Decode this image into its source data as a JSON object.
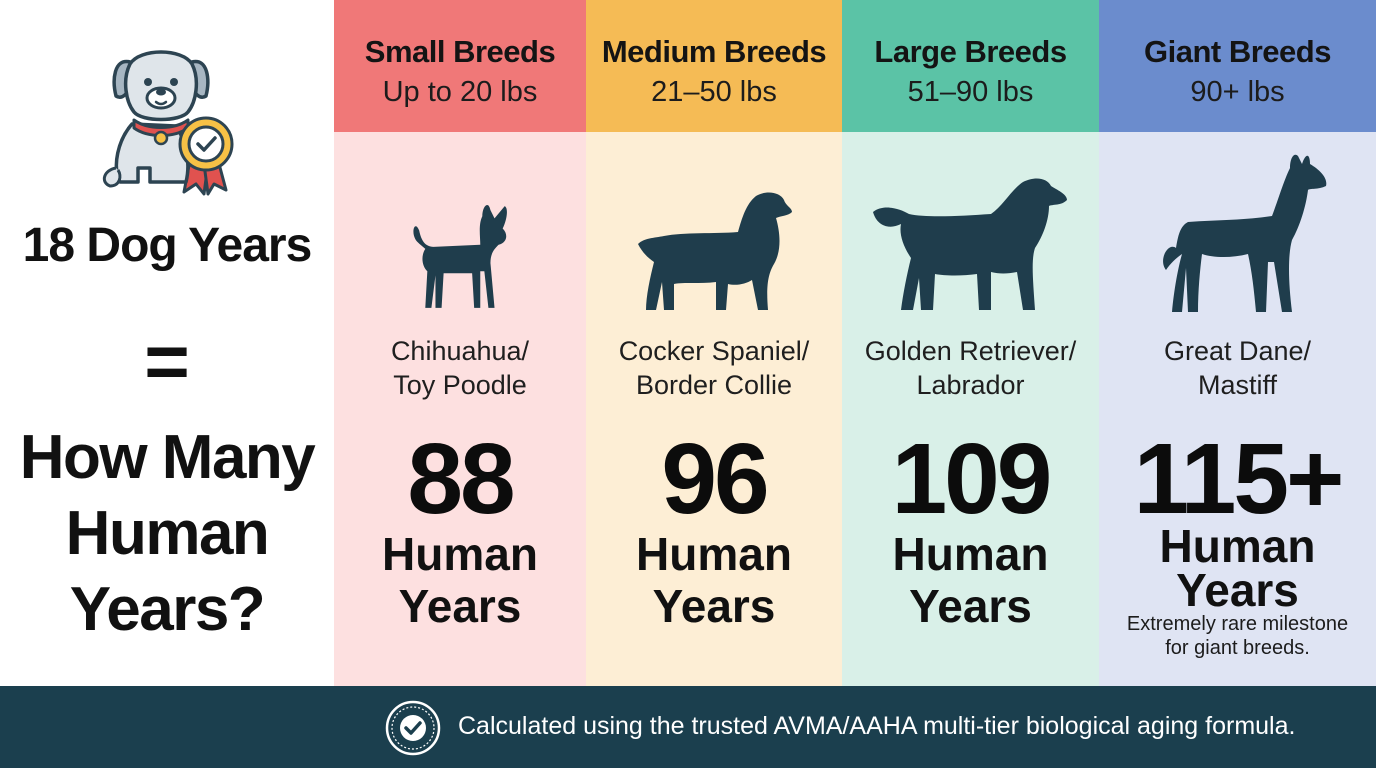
{
  "left": {
    "icon": "dog-with-award-ribbon-icon",
    "dog_years": "18 Dog Years",
    "equals": "=",
    "question_line1": "How Many",
    "question_line2": "Human",
    "question_line3": "Years?"
  },
  "columns": [
    {
      "title": "Small Breeds",
      "range": "Up to 20 lbs",
      "header_color": "#f07878",
      "body_color": "#fde0e0",
      "icon": "chihuahua-silhouette-icon",
      "breed_line1": "Chihuahua/",
      "breed_line2": "Toy Poodle",
      "years": "88",
      "unit_line1": "Human",
      "unit_line2": "Years",
      "note_line1": "",
      "note_line2": ""
    },
    {
      "title": "Medium Breeds",
      "range": "21–50 lbs",
      "header_color": "#f5bb55",
      "body_color": "#fdeed5",
      "icon": "cocker-spaniel-silhouette-icon",
      "breed_line1": "Cocker Spaniel/",
      "breed_line2": "Border Collie",
      "years": "96",
      "unit_line1": "Human",
      "unit_line2": "Years",
      "note_line1": "",
      "note_line2": ""
    },
    {
      "title": "Large Breeds",
      "range": "51–90 lbs",
      "header_color": "#5bc3a6",
      "body_color": "#d9f0e8",
      "icon": "golden-retriever-silhouette-icon",
      "breed_line1": "Golden Retriever/",
      "breed_line2": "Labrador",
      "years": "109",
      "unit_line1": "Human",
      "unit_line2": "Years",
      "note_line1": "",
      "note_line2": ""
    },
    {
      "title": "Giant Breeds",
      "range": "90+ lbs",
      "header_color": "#6b8ccd",
      "body_color": "#dfe4f3",
      "icon": "great-dane-silhouette-icon",
      "breed_line1": "Great Dane/",
      "breed_line2": "Mastiff",
      "years": "115+",
      "unit_line1": "Human",
      "unit_line2": "Years",
      "note_line1": "Extremely rare milestone",
      "note_line2": "for giant breeds."
    }
  ],
  "footer": {
    "icon": "verified-seal-icon",
    "text": "Calculated using the trusted AVMA/AAHA multi-tier biological aging formula.",
    "background": "#1b3f4e"
  },
  "colors": {
    "silhouette": "#1f3d4c"
  }
}
